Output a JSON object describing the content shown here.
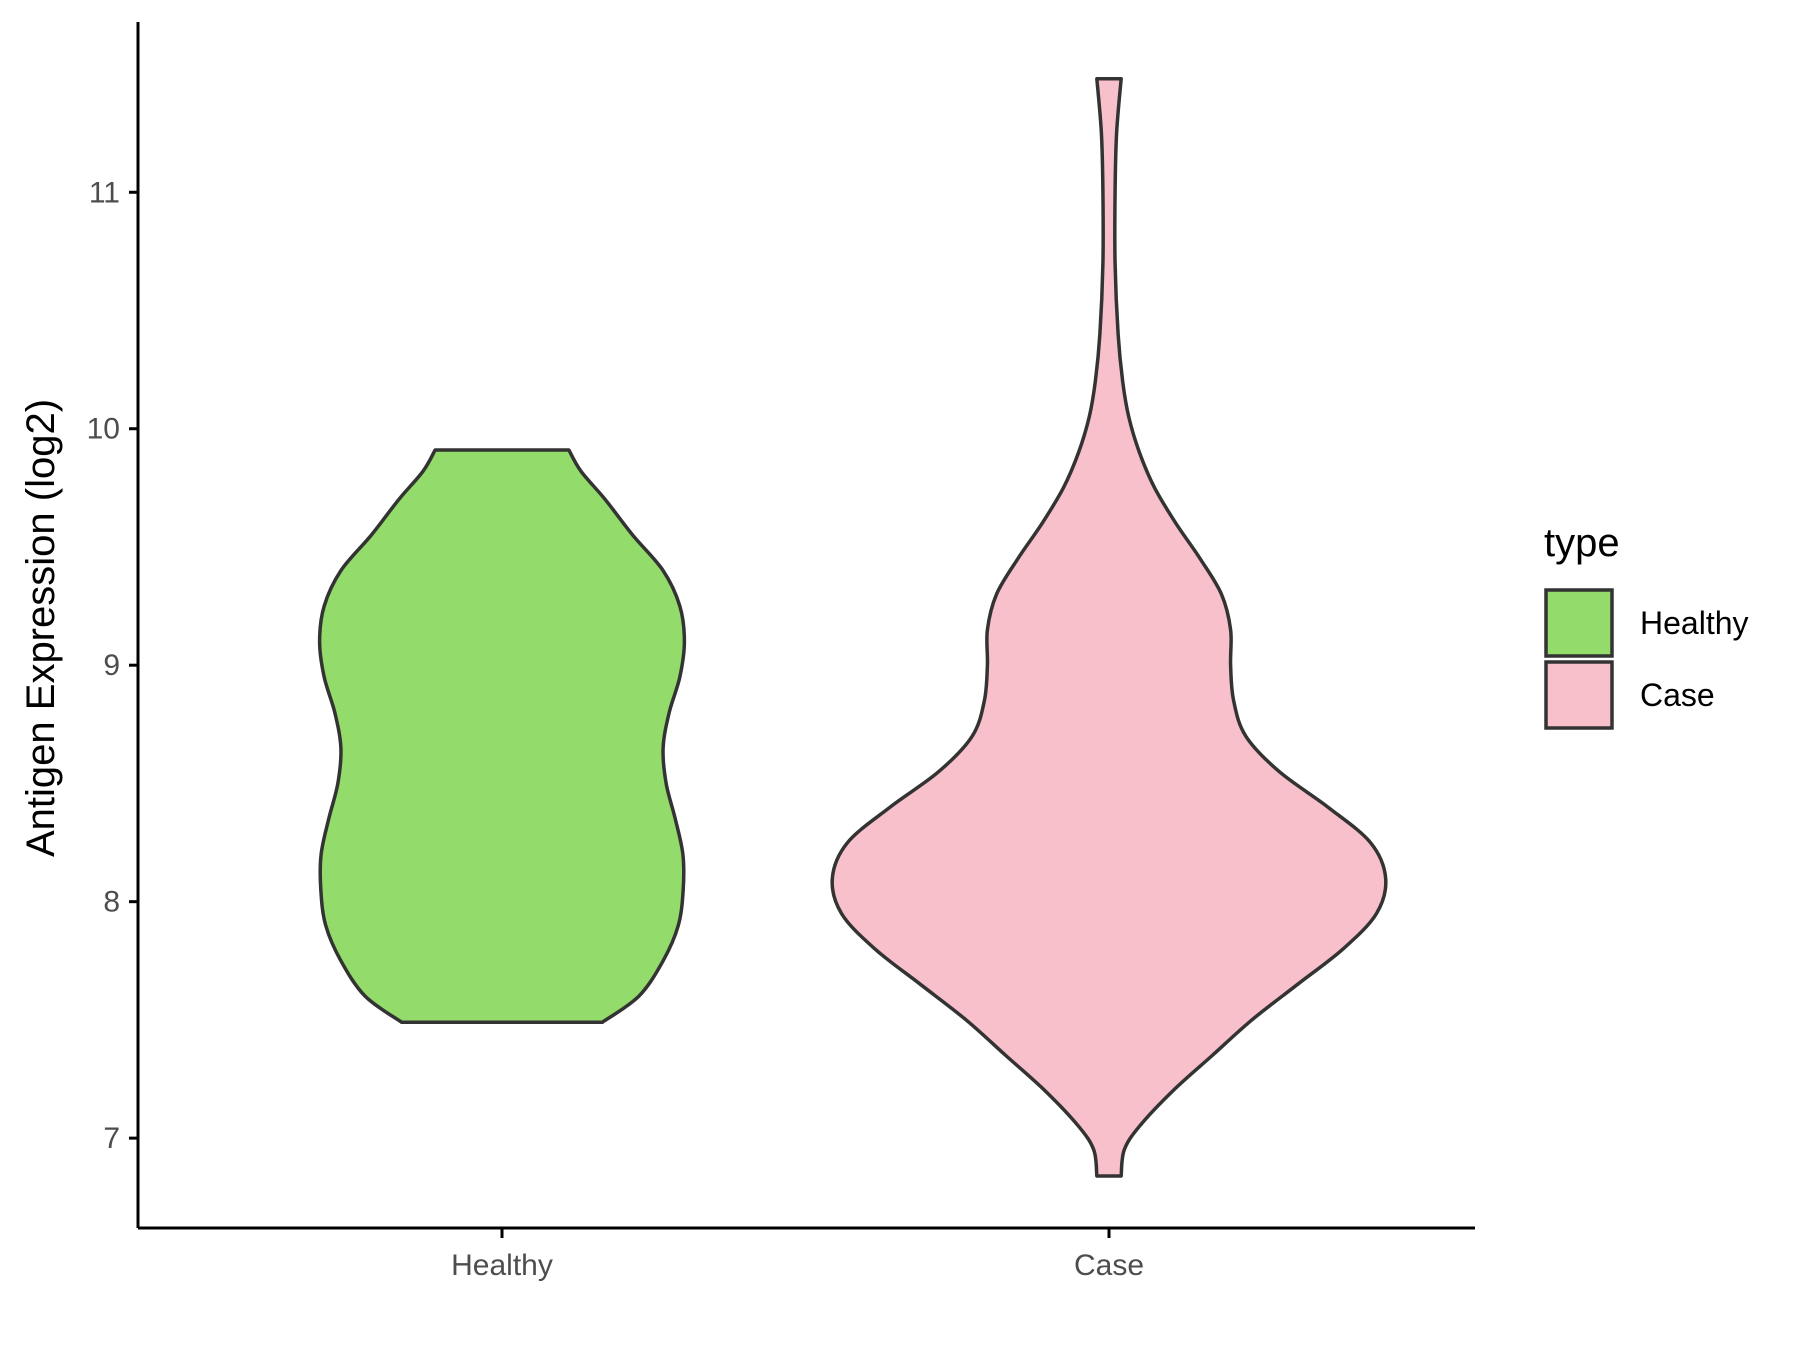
{
  "chart_data": {
    "type": "violin",
    "xlabel": "",
    "ylabel": "Antigen Expression (log2)",
    "ylim": [
      6.62,
      11.72
    ],
    "yticks": [
      7,
      8,
      9,
      10,
      11
    ],
    "grid": false,
    "categories": [
      "Healthy",
      "Case"
    ],
    "legend": {
      "title": "type",
      "position": "right",
      "entries": [
        {
          "label": "Healthy",
          "color": "#93DB6A"
        },
        {
          "label": "Case",
          "color": "#F8C0CB"
        }
      ]
    },
    "series": [
      {
        "category": "Healthy",
        "color": "#93DB6A",
        "min": 7.49,
        "max": 9.91,
        "density_profile": [
          [
            7.49,
            0.33
          ],
          [
            7.6,
            0.45
          ],
          [
            7.75,
            0.53
          ],
          [
            7.9,
            0.58
          ],
          [
            8.05,
            0.596
          ],
          [
            8.2,
            0.595
          ],
          [
            8.35,
            0.57
          ],
          [
            8.5,
            0.54
          ],
          [
            8.65,
            0.53
          ],
          [
            8.8,
            0.55
          ],
          [
            8.95,
            0.585
          ],
          [
            9.1,
            0.6
          ],
          [
            9.25,
            0.585
          ],
          [
            9.4,
            0.53
          ],
          [
            9.55,
            0.43
          ],
          [
            9.7,
            0.34
          ],
          [
            9.82,
            0.26
          ],
          [
            9.91,
            0.22
          ]
        ]
      },
      {
        "category": "Case",
        "color": "#F8C0CB",
        "min": 6.84,
        "max": 11.48,
        "density_profile": [
          [
            6.84,
            0.04
          ],
          [
            6.95,
            0.05
          ],
          [
            7.05,
            0.1
          ],
          [
            7.2,
            0.21
          ],
          [
            7.35,
            0.34
          ],
          [
            7.5,
            0.47
          ],
          [
            7.65,
            0.62
          ],
          [
            7.8,
            0.77
          ],
          [
            7.95,
            0.88
          ],
          [
            8.1,
            0.91
          ],
          [
            8.25,
            0.86
          ],
          [
            8.4,
            0.72
          ],
          [
            8.55,
            0.56
          ],
          [
            8.7,
            0.45
          ],
          [
            8.85,
            0.41
          ],
          [
            9.0,
            0.4
          ],
          [
            9.15,
            0.4
          ],
          [
            9.3,
            0.37
          ],
          [
            9.45,
            0.3
          ],
          [
            9.6,
            0.22
          ],
          [
            9.75,
            0.15
          ],
          [
            9.9,
            0.1
          ],
          [
            10.05,
            0.065
          ],
          [
            10.2,
            0.045
          ],
          [
            10.4,
            0.03
          ],
          [
            10.7,
            0.02
          ],
          [
            11.0,
            0.02
          ],
          [
            11.25,
            0.025
          ],
          [
            11.48,
            0.04
          ]
        ]
      }
    ]
  }
}
